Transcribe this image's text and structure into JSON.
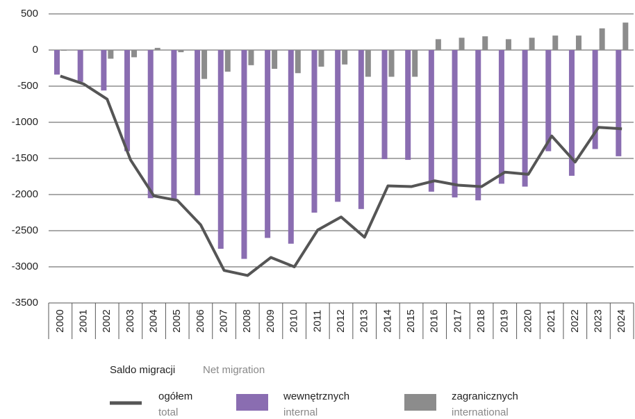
{
  "chart_data": {
    "type": "bar-line",
    "categories": [
      "2000",
      "2001",
      "2002",
      "2003",
      "2004",
      "2005",
      "2006",
      "2007",
      "2008",
      "2009",
      "2010",
      "2011",
      "2012",
      "2013",
      "2014",
      "2015",
      "2016",
      "2017",
      "2018",
      "2019",
      "2020",
      "2021",
      "2022",
      "2023",
      "2024"
    ],
    "series": [
      {
        "name": "ogółem",
        "name_en": "total",
        "kind": "line",
        "color": "#555555",
        "values": [
          -360,
          -470,
          -680,
          -1520,
          -2020,
          -2080,
          -2420,
          -3050,
          -3120,
          -2870,
          -3000,
          -2490,
          -2310,
          -2590,
          -1880,
          -1890,
          -1810,
          -1870,
          -1890,
          -1690,
          -1720,
          -1190,
          -1550,
          -1070,
          -1090
        ]
      },
      {
        "name": "wewnętrznych",
        "name_en": "internal",
        "kind": "bar",
        "color": "#8a6db1",
        "values": [
          -340,
          -440,
          -560,
          -1400,
          -2050,
          -2070,
          -2010,
          -2750,
          -2890,
          -2600,
          -2680,
          -2250,
          -2100,
          -2200,
          -1510,
          -1520,
          -1960,
          -2040,
          -2080,
          -1850,
          -1890,
          -1400,
          -1740,
          -1370,
          -1470
        ]
      },
      {
        "name": "zagranicznych",
        "name_en": "international",
        "kind": "bar",
        "color": "#8c8c8c",
        "values": [
          -10,
          0,
          -120,
          -100,
          30,
          -30,
          -400,
          -300,
          -210,
          -260,
          -320,
          -230,
          -200,
          -370,
          -370,
          -370,
          150,
          170,
          190,
          150,
          170,
          200,
          200,
          300,
          380
        ]
      }
    ],
    "legend_title": "Saldo migracji",
    "legend_title_en": "Net migration",
    "ylim": [
      -3500,
      500
    ],
    "yticks": [
      -3500,
      -3000,
      -2500,
      -2000,
      -1500,
      -1000,
      -500,
      0,
      500
    ],
    "grid": true
  }
}
